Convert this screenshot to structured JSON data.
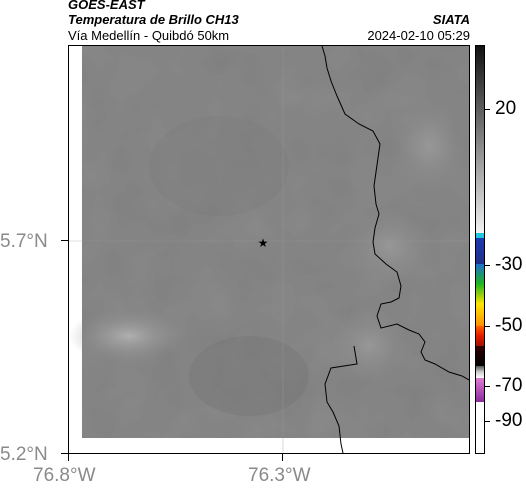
{
  "header": {
    "satellite": "GOES-EAST",
    "product": "Temperatura de Brillo CH13",
    "region": "Vía Medellín - Quibdó 50km",
    "institution": "SIATA",
    "timestamp": "2024-02-10 05:29"
  },
  "map": {
    "lat_ticks": [
      "5.7°N",
      "5.2°N"
    ],
    "lon_ticks": [
      "76.8°W",
      "76.3°W"
    ],
    "marker": "star-marker"
  },
  "colorbar": {
    "labels": [
      "20",
      "-30",
      "-50",
      "-70",
      "-90"
    ],
    "colors": {
      "gray_high": "#111111",
      "gray_low": "#f2f2f2",
      "cyan": "#22c4e0",
      "blue": "#1a3ab0",
      "green": "#1fb51f",
      "yellow": "#ffe400",
      "red": "#e51b00",
      "black": "#000000",
      "pink": "#e07ad0",
      "purple": "#8a2ba0"
    }
  }
}
